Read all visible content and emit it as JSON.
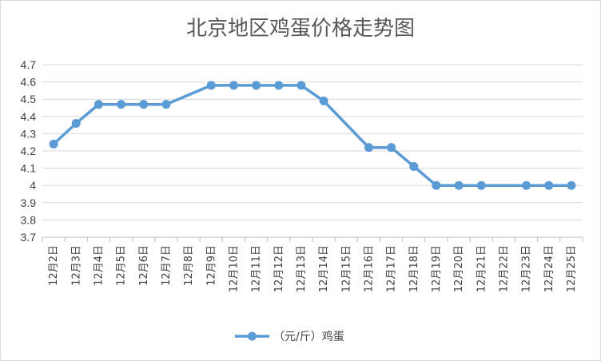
{
  "chart_data": {
    "type": "line",
    "title": "北京地区鸡蛋价格走势图",
    "xlabel": "",
    "ylabel": "",
    "categories": [
      "12月2日",
      "12月3日",
      "12月4日",
      "12月5日",
      "12月6日",
      "12月7日",
      "12月8日",
      "12月9日",
      "12月10日",
      "12月11日",
      "12月12日",
      "12月13日",
      "12月14日",
      "12月15日",
      "12月16日",
      "12月17日",
      "12月18日",
      "12月19日",
      "12月20日",
      "12月21日",
      "12月22日",
      "12月23日",
      "12月24日",
      "12月25日"
    ],
    "series": [
      {
        "name": "（元/斤）鸡蛋",
        "color": "#5b9bd5",
        "values": [
          4.24,
          4.36,
          4.47,
          4.47,
          4.47,
          4.47,
          null,
          4.58,
          4.58,
          4.58,
          4.58,
          4.58,
          4.49,
          null,
          4.22,
          4.22,
          4.11,
          4.0,
          4.0,
          4.0,
          null,
          4.0,
          4.0,
          4.0
        ]
      }
    ],
    "ylim": [
      3.7,
      4.7
    ],
    "yticks": [
      "4.7",
      "4.6",
      "4.5",
      "4.4",
      "4.3",
      "4.2",
      "4.1",
      "4",
      "3.9",
      "3.8",
      "3.7"
    ],
    "grid": true,
    "legend_position": "bottom"
  }
}
